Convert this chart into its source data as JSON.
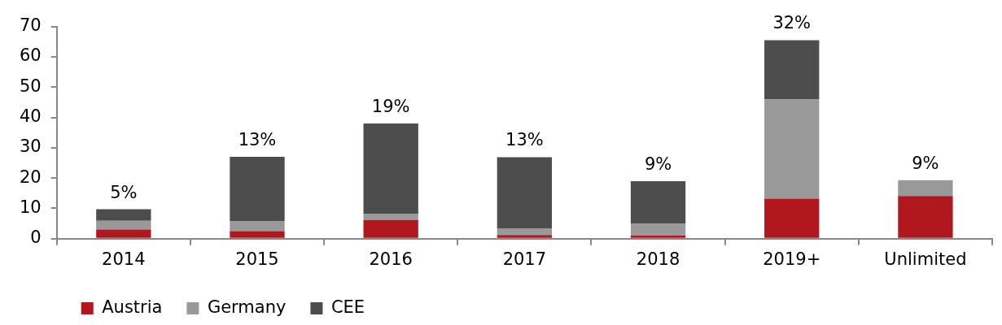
{
  "chart_data": {
    "type": "bar",
    "stacked": true,
    "categories": [
      "2014",
      "2015",
      "2016",
      "2017",
      "2018",
      "2019+",
      "Unlimited"
    ],
    "series": [
      {
        "name": "Austria",
        "color": "#b0171f",
        "values": [
          3.0,
          2.5,
          6.2,
          1.2,
          1.0,
          13.2,
          14.1
        ]
      },
      {
        "name": "Germany",
        "color": "#999999",
        "values": [
          2.9,
          3.2,
          1.9,
          2.2,
          3.9,
          32.8,
          5.2
        ]
      },
      {
        "name": "CEE",
        "color": "#4d4d4d",
        "values": [
          3.8,
          21.3,
          29.9,
          23.5,
          14.1,
          19.5,
          null
        ]
      }
    ],
    "ylim": [
      0,
      70
    ],
    "yticks": [
      0,
      10,
      20,
      30,
      40,
      50,
      60,
      70
    ],
    "annotations": [
      {
        "text": "5%",
        "x": "2014",
        "y": 9.7
      },
      {
        "text": "13%",
        "x": "2015",
        "y": 27.0
      },
      {
        "text": "19%",
        "x": "2016",
        "y": 38.0
      },
      {
        "text": "13%",
        "x": "2017",
        "y": 26.9
      },
      {
        "text": "9%",
        "x": "2018",
        "y": 19.0
      },
      {
        "text": "32%",
        "x": "2019+",
        "y": 65.5
      },
      {
        "text": "9%",
        "x": "Unlimited",
        "y": 19.3
      }
    ],
    "legend": "bottom left",
    "grid": false
  }
}
